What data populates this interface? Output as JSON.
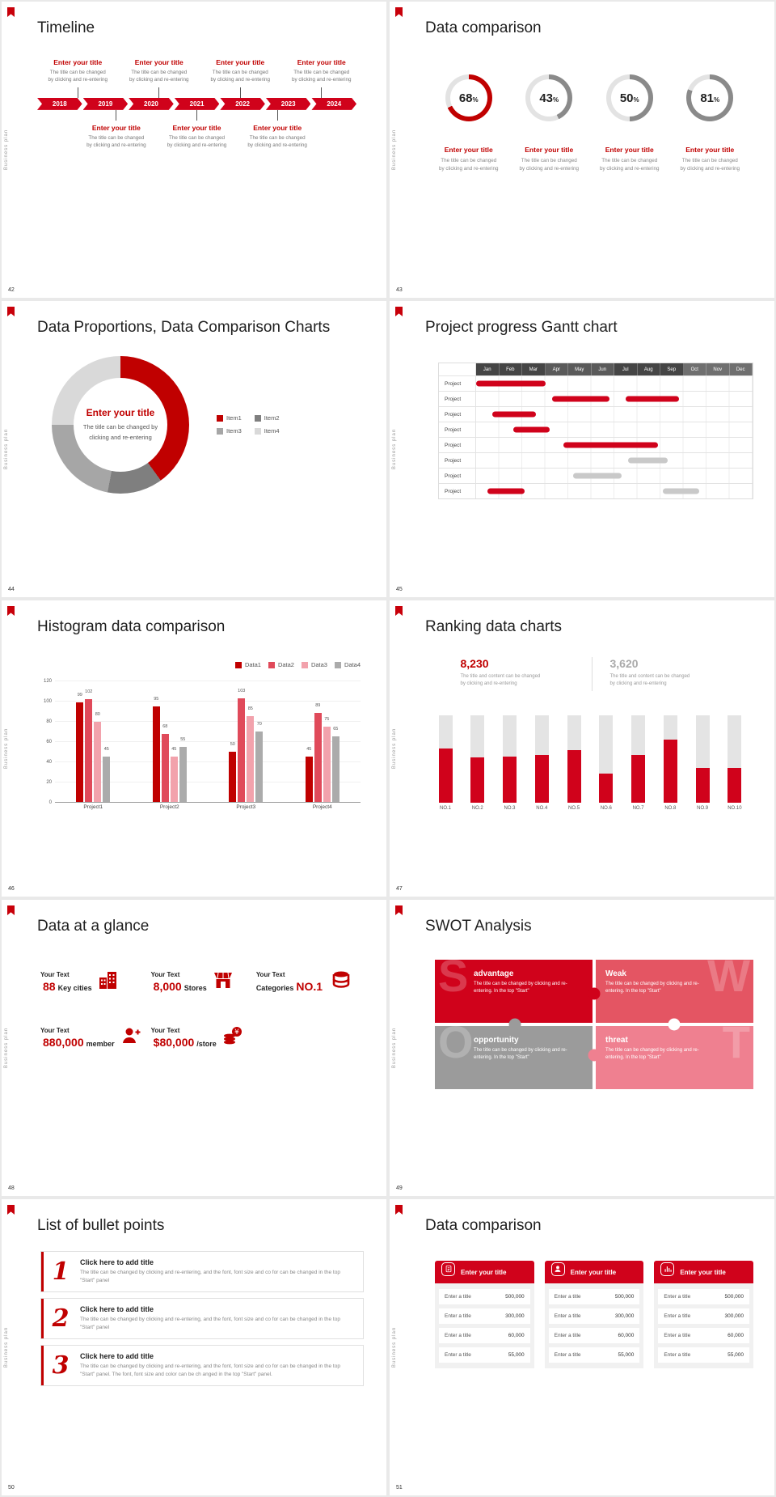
{
  "theme": {
    "accent_red": "#c00000",
    "bright_red": "#d0021b",
    "pink": "#ef8090",
    "gray": "#9b9b9b",
    "track_gray": "#e3e3e3",
    "page_bg": "#e9e9e9"
  },
  "common": {
    "side_label": "Business plan"
  },
  "placeholders": {
    "enter_title": "Enter your title",
    "line1": "The title can be changed",
    "line2": "by clicking and re-entering"
  },
  "slide42": {
    "number": "42",
    "title": "Timeline",
    "years": [
      "2018",
      "2019",
      "2020",
      "2021",
      "2022",
      "2023",
      "2024"
    ]
  },
  "slide43": {
    "number": "43",
    "title": "Data comparison",
    "chart_data": {
      "type": "donut-rings",
      "values": [
        68,
        43,
        50,
        81
      ],
      "unit": "%",
      "ring_colors": [
        "#c00000",
        "#8a8a8a",
        "#8a8a8a",
        "#8a8a8a"
      ],
      "track_color": "#e3e3e3"
    }
  },
  "slide44": {
    "number": "44",
    "title": "Data Proportions, Data Comparison Charts",
    "center_title": "Enter your title",
    "center_line1": "The title can be changed by",
    "center_line2": "clicking and re-entering",
    "chart_data": {
      "type": "pie",
      "legend": [
        "Item1",
        "Item2",
        "Item3",
        "Item4"
      ],
      "values": [
        40,
        13,
        22,
        25
      ],
      "colors": [
        "#c00000",
        "#7f7f7f",
        "#a6a6a6",
        "#d9d9d9"
      ],
      "legend_position": "right"
    }
  },
  "slide45": {
    "number": "45",
    "title": "Project progress Gantt chart",
    "chart_data": {
      "type": "gantt",
      "months": [
        "Jan",
        "Feb",
        "Mar",
        "Apr",
        "May",
        "Jun",
        "Jul",
        "Aug",
        "Sep",
        "Oct",
        "Nov",
        "Dec"
      ],
      "quarter_colors": [
        "#454545",
        "#5a5a5a",
        "#454545",
        "#6f6f6f"
      ],
      "bar_red": "#d0021b",
      "bar_gray": "#c9c9c9",
      "rows": [
        {
          "label": "Project",
          "bars": [
            {
              "start": 0,
              "end": 3,
              "color": "red"
            }
          ]
        },
        {
          "label": "Project",
          "bars": [
            {
              "start": 3.3,
              "end": 5.8,
              "color": "red"
            },
            {
              "start": 6.5,
              "end": 8.8,
              "color": "red"
            }
          ]
        },
        {
          "label": "Project",
          "bars": [
            {
              "start": 0.7,
              "end": 2.6,
              "color": "red"
            }
          ]
        },
        {
          "label": "Project",
          "bars": [
            {
              "start": 1.6,
              "end": 3.2,
              "color": "red"
            }
          ]
        },
        {
          "label": "Project",
          "bars": [
            {
              "start": 3.8,
              "end": 7.9,
              "color": "red"
            }
          ]
        },
        {
          "label": "Project",
          "bars": [
            {
              "start": 6.6,
              "end": 8.3,
              "color": "gray"
            }
          ]
        },
        {
          "label": "Project",
          "bars": [
            {
              "start": 4.2,
              "end": 6.3,
              "color": "gray"
            }
          ]
        },
        {
          "label": "Project",
          "bars": [
            {
              "start": 0.5,
              "end": 2.1,
              "color": "red"
            },
            {
              "start": 8.1,
              "end": 9.7,
              "color": "gray"
            }
          ]
        }
      ]
    }
  },
  "slide46": {
    "number": "46",
    "title": "Histogram data comparison",
    "chart_data": {
      "type": "bar",
      "categories": [
        "Project1",
        "Project2",
        "Project3",
        "Project4"
      ],
      "series": [
        {
          "name": "Data1",
          "color": "#c00000",
          "values": [
            99,
            95,
            50,
            45
          ]
        },
        {
          "name": "Data2",
          "color": "#e04a5a",
          "values": [
            102,
            68,
            103,
            89
          ]
        },
        {
          "name": "Data3",
          "color": "#f2a2ac",
          "values": [
            80,
            45,
            85,
            75
          ]
        },
        {
          "name": "Data4",
          "color": "#ababab",
          "values": [
            45,
            55,
            70,
            65
          ]
        }
      ],
      "ylim": [
        0,
        120
      ],
      "yticks": [
        0,
        20,
        40,
        60,
        80,
        100,
        120
      ],
      "legend_position": "top-right"
    }
  },
  "slide47": {
    "number": "47",
    "title": "Ranking data charts",
    "stat_left": {
      "value": "8,230",
      "line1": "The title and content can be changed",
      "line2": "by clicking and re-entering"
    },
    "stat_right": {
      "value": "3,620",
      "line1": "The title and content can be changed",
      "line2": "by clicking and re-entering"
    },
    "chart_data": {
      "type": "bar",
      "categories": [
        "NO.1",
        "NO.2",
        "NO.3",
        "NO.4",
        "NO.5",
        "NO.6",
        "NO.7",
        "NO.8",
        "NO.9",
        "NO.10"
      ],
      "values": [
        62,
        52,
        53,
        55,
        60,
        33,
        55,
        72,
        40,
        40
      ],
      "max": 100,
      "fill_color": "#d0021b",
      "track_color": "#e4e4e4"
    }
  },
  "slide48": {
    "number": "48",
    "title": "Data at a glance",
    "stats": [
      {
        "label": "Your Text",
        "value": "88",
        "suffix": "Key cities",
        "icon": "buildings"
      },
      {
        "label": "Your Text",
        "value": "8,000",
        "suffix": "Stores",
        "icon": "store"
      },
      {
        "label": "Your Text",
        "prefix": "Categories",
        "value": "NO.1",
        "icon": "categories"
      },
      {
        "label": "Your Text",
        "value": "880,000",
        "suffix": "member",
        "icon": "member"
      },
      {
        "label": "Your Text",
        "value": "$80,000",
        "suffix": "/store",
        "icon": "coins"
      }
    ]
  },
  "slide49": {
    "number": "49",
    "title": "SWOT Analysis",
    "quadrants": [
      {
        "letter": "S",
        "title": "advantage",
        "text": "The title can be changed by clicking and re-entering. In the top \"Start\"",
        "color": "#d0021b"
      },
      {
        "letter": "W",
        "title": "Weak",
        "text": "The title can be changed by clicking and re-entering. In the top \"Start\"",
        "color": "#e45563"
      },
      {
        "letter": "O",
        "title": "opportunity",
        "text": "The title can be changed by clicking and re-entering. In the top \"Start\"",
        "color": "#9b9b9b"
      },
      {
        "letter": "T",
        "title": "threat",
        "text": "The title can be changed by clicking and re-entering. In the top \"Start\"",
        "color": "#ef8090"
      }
    ]
  },
  "slide50": {
    "number": "50",
    "title": "List of bullet points",
    "items": [
      {
        "num": "1",
        "title": "Click here to add title",
        "text": "The title can be changed by clicking and re-entering, and the font, font size and co for can be changed in the top \"Start\" panel"
      },
      {
        "num": "2",
        "title": "Click here to add title",
        "text": "The title can be changed by clicking and re-entering, and the font, font size and co for can be changed in the top \"Start\" panel"
      },
      {
        "num": "3",
        "title": "Click here to add title",
        "text": "The title can be changed by clicking and re-entering, and the font, font size and co for can be changed in the top \"Start\" panel. The font, font size and color can be ch anged in the top \"Start\" panel."
      }
    ]
  },
  "slide51": {
    "number": "51",
    "title": "Data comparison",
    "columns": [
      {
        "header": "Enter your title",
        "icon": "doc",
        "rows": [
          [
            "Enter a title",
            "500,000"
          ],
          [
            "Enter a title",
            "300,000"
          ],
          [
            "Enter a title",
            "60,000"
          ],
          [
            "Enter a title",
            "55,000"
          ]
        ]
      },
      {
        "header": "Enter your title",
        "icon": "user",
        "rows": [
          [
            "Enter a title",
            "500,000"
          ],
          [
            "Enter a title",
            "300,000"
          ],
          [
            "Enter a title",
            "60,000"
          ],
          [
            "Enter a title",
            "55,000"
          ]
        ]
      },
      {
        "header": "Enter your title",
        "icon": "chart",
        "rows": [
          [
            "Enter a title",
            "500,000"
          ],
          [
            "Enter a title",
            "300,000"
          ],
          [
            "Enter a title",
            "60,000"
          ],
          [
            "Enter a title",
            "55,000"
          ]
        ]
      }
    ]
  }
}
